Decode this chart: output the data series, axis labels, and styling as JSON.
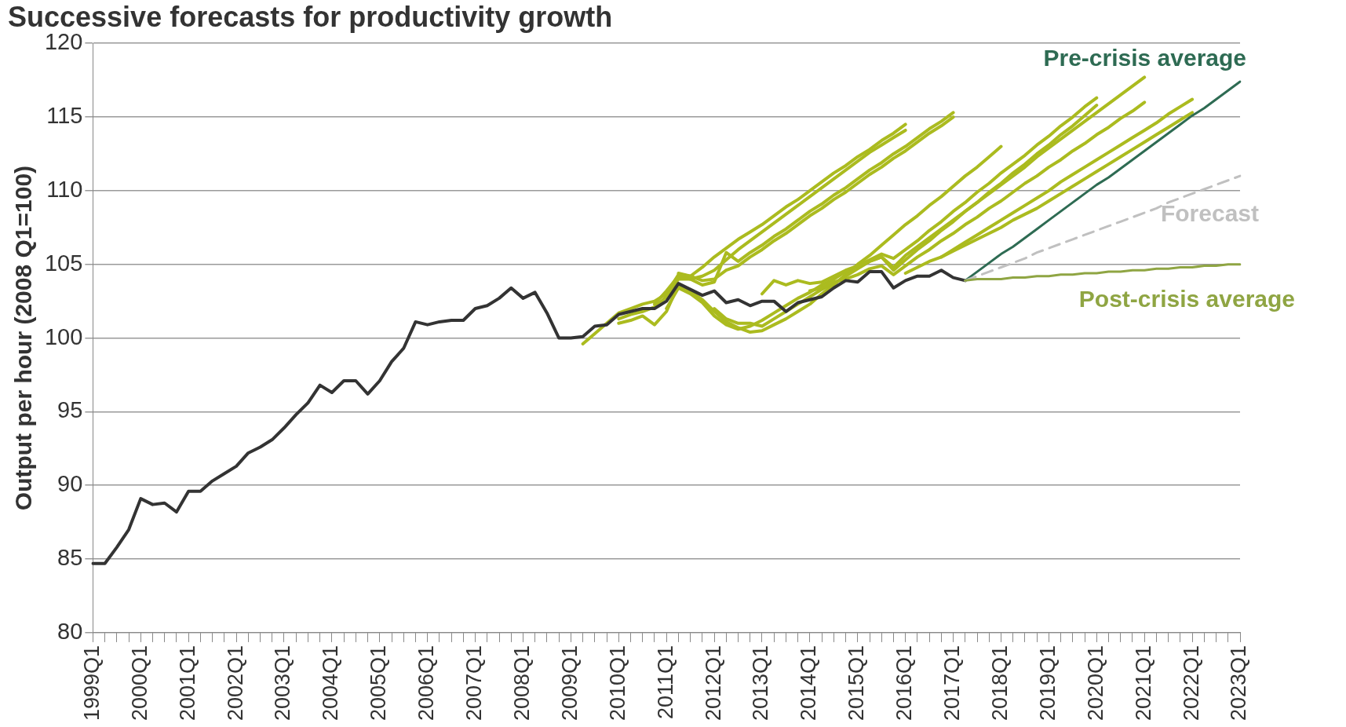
{
  "chart_data": {
    "type": "line",
    "title": "Successive forecasts for productivity growth",
    "ylabel": "Output per hour (2008 Q1=100)",
    "categories": [
      "1999Q1",
      null,
      null,
      null,
      "2000Q1",
      null,
      null,
      null,
      "2001Q1",
      null,
      null,
      null,
      "2002Q1",
      null,
      null,
      null,
      "2003Q1",
      null,
      null,
      null,
      "2004Q1",
      null,
      null,
      null,
      "2005Q1",
      null,
      null,
      null,
      "2006Q1",
      null,
      null,
      null,
      "2007Q1",
      null,
      null,
      null,
      "2008Q1",
      null,
      null,
      null,
      "2009Q1",
      null,
      null,
      null,
      "2010Q1",
      null,
      null,
      null,
      "2011Q1",
      null,
      null,
      null,
      "2012Q1",
      null,
      null,
      null,
      "2013Q1",
      null,
      null,
      null,
      "2014Q1",
      null,
      null,
      null,
      "2015Q1",
      null,
      null,
      null,
      "2016Q1",
      null,
      null,
      null,
      "2017Q1",
      null,
      null,
      null,
      "2018Q1",
      null,
      null,
      null,
      "2019Q1",
      null,
      null,
      null,
      "2020Q1",
      null,
      null,
      null,
      "2021Q1",
      null,
      null,
      null,
      "2022Q1",
      null,
      null,
      null,
      "2023Q1"
    ],
    "ylim": [
      80,
      120
    ],
    "yticks": [
      80,
      85,
      90,
      95,
      100,
      105,
      110,
      115,
      120
    ],
    "grid": "y",
    "legend": false,
    "series": [
      {
        "color": "#abbb1f",
        "values": [
          null,
          null,
          null,
          null,
          null,
          null,
          null,
          null,
          null,
          null,
          null,
          null,
          null,
          null,
          null,
          null,
          null,
          null,
          null,
          null,
          null,
          null,
          null,
          null,
          null,
          null,
          null,
          null,
          null,
          null,
          null,
          null,
          null,
          null,
          null,
          null,
          null,
          null,
          null,
          null,
          null,
          99.6,
          100.3,
          101.0,
          101.7,
          102.0,
          102.3,
          102.5,
          103.0,
          104.3,
          104.2,
          104.8,
          105.5,
          106.1,
          106.7,
          107.2,
          107.7,
          108.3,
          108.9,
          109.4,
          110.0,
          110.6,
          111.2,
          111.7,
          112.3,
          112.8,
          113.4,
          113.9,
          114.5,
          null,
          null,
          null,
          null,
          null,
          null,
          null,
          null,
          null,
          null,
          null,
          null,
          null,
          null,
          null,
          null,
          null,
          null,
          null,
          null,
          null,
          null,
          null,
          null,
          null,
          null,
          null,
          null
        ]
      },
      {
        "color": "#abbb1f",
        "values": [
          null,
          null,
          null,
          null,
          null,
          null,
          null,
          null,
          null,
          null,
          null,
          null,
          null,
          null,
          null,
          null,
          null,
          null,
          null,
          null,
          null,
          null,
          null,
          null,
          null,
          null,
          null,
          null,
          null,
          null,
          null,
          null,
          null,
          null,
          null,
          null,
          null,
          null,
          null,
          null,
          null,
          null,
          null,
          null,
          101.3,
          101.6,
          101.8,
          102.1,
          102.8,
          104.0,
          104.0,
          104.2,
          104.6,
          105.3,
          106.0,
          106.6,
          107.2,
          107.8,
          108.4,
          109.0,
          109.6,
          110.2,
          110.8,
          111.4,
          112.0,
          112.6,
          113.1,
          113.6,
          114.1,
          null,
          null,
          null,
          null,
          null,
          null,
          null,
          null,
          null,
          null,
          null,
          null,
          null,
          null,
          null,
          null,
          null,
          null,
          null,
          null,
          null,
          null,
          null,
          null,
          null,
          null,
          null,
          null
        ]
      },
      {
        "color": "#abbb1f",
        "values": [
          null,
          null,
          null,
          null,
          null,
          null,
          null,
          null,
          null,
          null,
          null,
          null,
          null,
          null,
          null,
          null,
          null,
          null,
          null,
          null,
          null,
          null,
          null,
          null,
          null,
          null,
          null,
          null,
          null,
          null,
          null,
          null,
          null,
          null,
          null,
          null,
          null,
          null,
          null,
          null,
          null,
          null,
          null,
          null,
          null,
          null,
          null,
          102.3,
          103.2,
          104.2,
          104.0,
          103.6,
          103.8,
          105.8,
          105.2,
          105.8,
          106.3,
          106.9,
          107.4,
          108.0,
          108.6,
          109.1,
          109.7,
          110.2,
          110.8,
          111.4,
          111.9,
          112.5,
          113.0,
          113.6,
          114.2,
          114.7,
          115.3,
          null,
          null,
          null,
          null,
          null,
          null,
          null,
          null,
          null,
          null,
          null,
          null,
          null,
          null,
          null,
          null,
          null,
          null,
          null,
          null,
          null,
          null,
          null,
          null
        ]
      },
      {
        "color": "#abbb1f",
        "values": [
          null,
          null,
          null,
          null,
          null,
          null,
          null,
          null,
          null,
          null,
          null,
          null,
          null,
          null,
          null,
          null,
          null,
          null,
          null,
          null,
          null,
          null,
          null,
          null,
          null,
          null,
          null,
          null,
          null,
          null,
          null,
          null,
          null,
          null,
          null,
          null,
          null,
          null,
          null,
          null,
          null,
          null,
          null,
          null,
          null,
          null,
          null,
          null,
          null,
          104.4,
          104.2,
          103.9,
          104.0,
          104.6,
          104.9,
          105.5,
          106.0,
          106.6,
          107.1,
          107.7,
          108.3,
          108.8,
          109.4,
          109.9,
          110.5,
          111.1,
          111.6,
          112.2,
          112.7,
          113.3,
          113.9,
          114.4,
          115.0,
          null,
          null,
          null,
          null,
          null,
          null,
          null,
          null,
          null,
          null,
          null,
          null,
          null,
          null,
          null,
          null,
          null,
          null,
          null,
          null,
          null,
          null,
          null,
          null
        ]
      },
      {
        "color": "#abbb1f",
        "values": [
          null,
          null,
          null,
          null,
          null,
          null,
          null,
          null,
          null,
          null,
          null,
          null,
          null,
          null,
          null,
          null,
          null,
          null,
          null,
          null,
          null,
          null,
          null,
          null,
          null,
          null,
          null,
          null,
          null,
          null,
          null,
          null,
          null,
          null,
          null,
          null,
          null,
          null,
          null,
          null,
          null,
          null,
          null,
          null,
          101.0,
          101.2,
          101.5,
          100.9,
          101.8,
          103.6,
          103.2,
          102.6,
          101.8,
          101.1,
          100.7,
          100.4,
          100.5,
          100.9,
          101.3,
          101.8,
          102.3,
          103.0,
          103.6,
          104.3,
          105.0,
          105.6,
          106.3,
          107.0,
          107.7,
          108.3,
          109.0,
          109.6,
          110.3,
          111.0,
          111.6,
          112.3,
          113.0,
          null,
          null,
          null,
          null,
          null,
          null,
          null,
          null,
          null,
          null,
          null,
          null,
          null,
          null,
          null,
          null,
          null,
          null,
          null,
          null
        ]
      },
      {
        "color": "#abbb1f",
        "values": [
          null,
          null,
          null,
          null,
          null,
          null,
          null,
          null,
          null,
          null,
          null,
          null,
          null,
          null,
          null,
          null,
          null,
          null,
          null,
          null,
          null,
          null,
          null,
          null,
          null,
          null,
          null,
          null,
          null,
          null,
          null,
          null,
          null,
          null,
          null,
          null,
          null,
          null,
          null,
          null,
          null,
          null,
          null,
          null,
          null,
          null,
          null,
          null,
          102.0,
          103.4,
          103.0,
          102.4,
          101.5,
          100.9,
          100.6,
          100.8,
          101.2,
          101.7,
          102.2,
          102.7,
          103.1,
          103.6,
          104.0,
          104.5,
          104.9,
          105.3,
          105.7,
          105.4,
          106.0,
          106.6,
          107.3,
          107.9,
          108.6,
          109.2,
          109.9,
          110.5,
          111.2,
          111.8,
          112.4,
          113.1,
          113.7,
          114.4,
          115.0,
          115.7,
          116.3,
          null,
          null,
          null,
          null,
          null,
          null,
          null,
          null,
          null,
          null,
          null,
          null
        ]
      },
      {
        "color": "#abbb1f",
        "values": [
          null,
          null,
          null,
          null,
          null,
          null,
          null,
          null,
          null,
          null,
          null,
          null,
          null,
          null,
          null,
          null,
          null,
          null,
          null,
          null,
          null,
          null,
          null,
          null,
          null,
          null,
          null,
          null,
          null,
          null,
          null,
          null,
          null,
          null,
          null,
          null,
          null,
          null,
          null,
          null,
          null,
          null,
          null,
          null,
          null,
          null,
          null,
          null,
          null,
          null,
          null,
          null,
          102.0,
          101.3,
          101.0,
          101.0,
          100.8,
          101.3,
          101.8,
          102.3,
          102.8,
          103.3,
          103.7,
          104.2,
          104.7,
          105.2,
          105.5,
          104.6,
          105.3,
          106.0,
          106.6,
          107.3,
          107.9,
          108.6,
          109.2,
          109.9,
          110.5,
          111.2,
          111.8,
          112.5,
          113.1,
          113.8,
          114.4,
          115.1,
          115.8,
          null,
          null,
          null,
          null,
          null,
          null,
          null,
          null,
          null,
          null,
          null,
          null
        ]
      },
      {
        "color": "#abbb1f",
        "values": [
          null,
          null,
          null,
          null,
          null,
          null,
          null,
          null,
          null,
          null,
          null,
          null,
          null,
          null,
          null,
          null,
          null,
          null,
          null,
          null,
          null,
          null,
          null,
          null,
          null,
          null,
          null,
          null,
          null,
          null,
          null,
          null,
          null,
          null,
          null,
          null,
          null,
          null,
          null,
          null,
          null,
          null,
          null,
          null,
          null,
          null,
          null,
          null,
          null,
          null,
          null,
          null,
          null,
          null,
          null,
          null,
          103.0,
          103.9,
          103.6,
          103.9,
          103.7,
          103.8,
          104.2,
          104.6,
          104.9,
          105.2,
          105.5,
          104.8,
          105.6,
          106.2,
          106.8,
          107.4,
          108.0,
          108.6,
          109.2,
          109.8,
          110.4,
          111.0,
          111.6,
          112.3,
          112.9,
          113.5,
          114.1,
          114.7,
          115.3,
          115.9,
          116.5,
          117.1,
          117.7,
          null,
          null,
          null,
          null,
          null,
          null,
          null,
          null
        ]
      },
      {
        "color": "#abbb1f",
        "values": [
          null,
          null,
          null,
          null,
          null,
          null,
          null,
          null,
          null,
          null,
          null,
          null,
          null,
          null,
          null,
          null,
          null,
          null,
          null,
          null,
          null,
          null,
          null,
          null,
          null,
          null,
          null,
          null,
          null,
          null,
          null,
          null,
          null,
          null,
          null,
          null,
          null,
          null,
          null,
          null,
          null,
          null,
          null,
          null,
          null,
          null,
          null,
          null,
          null,
          null,
          null,
          null,
          null,
          null,
          null,
          null,
          null,
          null,
          null,
          null,
          103.2,
          103.4,
          103.8,
          104.0,
          104.3,
          104.7,
          104.9,
          104.3,
          104.9,
          105.5,
          106.0,
          106.6,
          107.1,
          107.7,
          108.2,
          108.8,
          109.3,
          109.9,
          110.5,
          111.0,
          111.6,
          112.1,
          112.7,
          113.2,
          113.8,
          114.3,
          114.9,
          115.4,
          116.0,
          null,
          null,
          null,
          null,
          null,
          null,
          null,
          null
        ]
      },
      {
        "color": "#abbb1f",
        "values": [
          null,
          null,
          null,
          null,
          null,
          null,
          null,
          null,
          null,
          null,
          null,
          null,
          null,
          null,
          null,
          null,
          null,
          null,
          null,
          null,
          null,
          null,
          null,
          null,
          null,
          null,
          null,
          null,
          null,
          null,
          null,
          null,
          null,
          null,
          null,
          null,
          null,
          null,
          null,
          null,
          null,
          null,
          null,
          null,
          null,
          null,
          null,
          null,
          null,
          null,
          null,
          null,
          null,
          null,
          null,
          null,
          null,
          null,
          null,
          null,
          null,
          null,
          null,
          null,
          null,
          null,
          null,
          null,
          104.4,
          104.8,
          105.2,
          105.5,
          106.0,
          106.5,
          107.0,
          107.5,
          108.0,
          108.5,
          109.0,
          109.5,
          110.0,
          110.6,
          111.1,
          111.6,
          112.1,
          112.6,
          113.1,
          113.6,
          114.1,
          114.6,
          115.2,
          115.7,
          116.2,
          null,
          null,
          null,
          null
        ]
      },
      {
        "color": "#abbb1f",
        "values": [
          null,
          null,
          null,
          null,
          null,
          null,
          null,
          null,
          null,
          null,
          null,
          null,
          null,
          null,
          null,
          null,
          null,
          null,
          null,
          null,
          null,
          null,
          null,
          null,
          null,
          null,
          null,
          null,
          null,
          null,
          null,
          null,
          null,
          null,
          null,
          null,
          null,
          null,
          null,
          null,
          null,
          null,
          null,
          null,
          null,
          null,
          null,
          null,
          null,
          null,
          null,
          null,
          null,
          null,
          null,
          null,
          null,
          null,
          null,
          null,
          null,
          null,
          null,
          null,
          null,
          null,
          null,
          null,
          null,
          null,
          null,
          105.5,
          105.9,
          106.3,
          106.7,
          107.1,
          107.5,
          108.0,
          108.4,
          108.8,
          109.3,
          109.8,
          110.3,
          110.8,
          111.3,
          111.8,
          112.3,
          112.8,
          113.3,
          113.8,
          114.3,
          114.8,
          115.3,
          null,
          null,
          null,
          null
        ]
      },
      {
        "color": "#333333",
        "values": [
          84.7,
          84.7,
          85.8,
          87.0,
          89.1,
          88.7,
          88.8,
          88.2,
          89.6,
          89.6,
          90.3,
          90.8,
          91.3,
          92.2,
          92.6,
          93.1,
          93.9,
          94.8,
          95.6,
          96.8,
          96.3,
          97.1,
          97.1,
          96.2,
          97.1,
          98.4,
          99.3,
          101.1,
          100.9,
          101.1,
          101.2,
          101.2,
          102.0,
          102.2,
          102.7,
          103.4,
          102.7,
          103.1,
          101.7,
          100.0,
          100.0,
          100.1,
          100.8,
          100.9,
          101.6,
          101.8,
          102.0,
          102.0,
          102.5,
          103.7,
          103.3,
          102.9,
          103.2,
          102.4,
          102.6,
          102.2,
          102.5,
          102.5,
          101.8,
          102.4,
          102.6,
          102.8,
          103.4,
          103.9,
          103.8,
          104.5,
          104.5,
          103.4,
          103.9,
          104.2,
          104.2,
          104.6,
          104.1,
          103.9,
          null,
          null,
          null,
          null,
          null,
          null,
          null,
          null,
          null,
          null,
          null,
          null,
          null,
          null,
          null,
          null,
          null,
          null,
          null,
          null,
          null,
          null,
          null
        ]
      },
      {
        "name": "Pre-crisis average",
        "color": "#2e6b53",
        "values": [
          null,
          null,
          null,
          null,
          null,
          null,
          null,
          null,
          null,
          null,
          null,
          null,
          null,
          null,
          null,
          null,
          null,
          null,
          null,
          null,
          null,
          null,
          null,
          null,
          null,
          null,
          null,
          null,
          null,
          null,
          null,
          null,
          null,
          null,
          null,
          null,
          null,
          null,
          null,
          null,
          null,
          null,
          null,
          null,
          null,
          null,
          null,
          null,
          null,
          null,
          null,
          null,
          null,
          null,
          null,
          null,
          null,
          null,
          null,
          null,
          null,
          null,
          null,
          null,
          null,
          null,
          null,
          null,
          null,
          null,
          null,
          null,
          null,
          103.9,
          104.5,
          105.1,
          105.7,
          106.2,
          106.8,
          107.4,
          108.0,
          108.6,
          109.2,
          109.8,
          110.4,
          110.9,
          111.5,
          112.1,
          112.7,
          113.3,
          113.9,
          114.5,
          115.1,
          115.6,
          116.2,
          116.8,
          117.4
        ]
      },
      {
        "name": "Forecast",
        "color": "#c0c0c0",
        "line_style": "dashed",
        "values": [
          null,
          null,
          null,
          null,
          null,
          null,
          null,
          null,
          null,
          null,
          null,
          null,
          null,
          null,
          null,
          null,
          null,
          null,
          null,
          null,
          null,
          null,
          null,
          null,
          null,
          null,
          null,
          null,
          null,
          null,
          null,
          null,
          null,
          null,
          null,
          null,
          null,
          null,
          null,
          null,
          null,
          null,
          null,
          null,
          null,
          null,
          null,
          null,
          null,
          null,
          null,
          null,
          null,
          null,
          null,
          null,
          null,
          null,
          null,
          null,
          null,
          null,
          null,
          null,
          null,
          null,
          null,
          null,
          null,
          null,
          null,
          null,
          null,
          103.9,
          104.2,
          104.5,
          104.8,
          105.1,
          105.4,
          105.8,
          106.1,
          106.4,
          106.7,
          107.0,
          107.3,
          107.6,
          107.9,
          108.2,
          108.5,
          108.8,
          109.2,
          109.5,
          109.8,
          110.1,
          110.4,
          110.7,
          111.0
        ]
      },
      {
        "name": "Post-crisis average",
        "color": "#8fa543",
        "values": [
          null,
          null,
          null,
          null,
          null,
          null,
          null,
          null,
          null,
          null,
          null,
          null,
          null,
          null,
          null,
          null,
          null,
          null,
          null,
          null,
          null,
          null,
          null,
          null,
          null,
          null,
          null,
          null,
          null,
          null,
          null,
          null,
          null,
          null,
          null,
          null,
          null,
          null,
          null,
          null,
          null,
          null,
          null,
          null,
          null,
          null,
          null,
          null,
          null,
          null,
          null,
          null,
          null,
          null,
          null,
          null,
          null,
          null,
          null,
          null,
          null,
          null,
          null,
          null,
          null,
          null,
          null,
          null,
          null,
          null,
          null,
          null,
          null,
          103.9,
          104.0,
          104.0,
          104.0,
          104.1,
          104.1,
          104.2,
          104.2,
          104.3,
          104.3,
          104.4,
          104.4,
          104.5,
          104.5,
          104.6,
          104.6,
          104.7,
          104.7,
          104.8,
          104.8,
          104.9,
          104.9,
          105.0,
          105.0
        ]
      }
    ]
  }
}
